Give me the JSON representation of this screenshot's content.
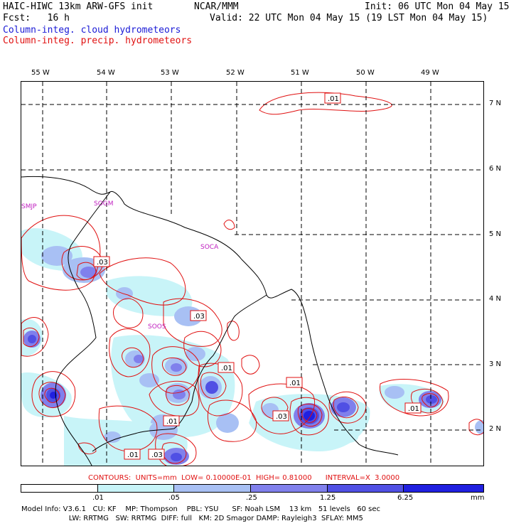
{
  "header": {
    "title_left": "HAIC-HIWC 13km ARW-GFS init",
    "title_org": "NCAR/MMM",
    "init": "Init: 06 UTC Mon 04 May 15",
    "fcst": "Fcst:   16 h",
    "valid": "Valid: 22 UTC Mon 04 May 15 (19 LST Mon 04 May 15)",
    "legend_cloud": "Column-integ. cloud hydrometeors",
    "legend_precip": "Column-integ. precip. hydrometeors"
  },
  "map": {
    "lon_labels": [
      "55 W",
      "54 W",
      "53 W",
      "52 W",
      "51 W",
      "50 W",
      "49 W"
    ],
    "lat_labels": [
      "7 N",
      "6 N",
      "5 N",
      "4 N",
      "3 N",
      "2 N"
    ],
    "station_labels": [
      "SMJP",
      "SOGM",
      "SOCA",
      "SOOS"
    ],
    "contour_labels": [
      ".01",
      ".03",
      ".03",
      ".01",
      ".01",
      ".03",
      ".01",
      ".01",
      ".01",
      ".03"
    ]
  },
  "contour_info": "CONTOURS:  UNITS=mm  LOW= 0.10000E-01  HIGH= 0.81000      INTERVAL=X  3.0000",
  "colorbar": {
    "colors": [
      "#ffffff",
      "#c8f4f8",
      "#a8c0f4",
      "#8080ec",
      "#5050e4",
      "#2020e0"
    ],
    "tick_labels": [
      ".01",
      ".05",
      ".25",
      "1.25",
      "6.25"
    ],
    "unit": "mm"
  },
  "model_info": {
    "line1": "Model Info: V3.6.1   CU: KF    MP: Thompson    PBL: YSU      SF: Noah LSM    13 km   51 levels   60 sec",
    "line2": "                     LW: RRTMG   SW: RRTMG  DIFF: full   KM: 2D Smagor DAMP: Rayleigh3  SFLAY: MM5"
  }
}
